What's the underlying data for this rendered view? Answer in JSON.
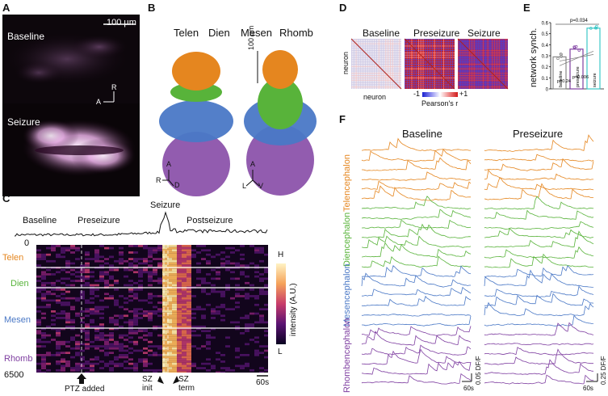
{
  "panels": {
    "A": {
      "letter": "A",
      "scalebar": "100 µm",
      "top_label": "Baseline",
      "bottom_label": "Seizure",
      "axis_r": "R",
      "axis_a": "A"
    },
    "B": {
      "letter": "B",
      "regions": [
        {
          "name": "Telen",
          "color": "#e5861f"
        },
        {
          "name": "Dien",
          "color": "#58b33a"
        },
        {
          "name": "Mesen",
          "color": "#4a78c6"
        },
        {
          "name": "Rhomb",
          "color": "#7f3fa1"
        }
      ],
      "scalebar": "100 µm",
      "axes_left": {
        "a": "A",
        "r": "R",
        "d": "D"
      },
      "axes_right": {
        "a": "A",
        "l": "L",
        "v": "V"
      }
    },
    "C": {
      "letter": "C",
      "phases": [
        "Baseline",
        "Preseizure",
        "Seizure",
        "Postseizure"
      ],
      "regions": [
        {
          "name": "Telen",
          "color": "#e5861f"
        },
        {
          "name": "Dien",
          "color": "#58b33a"
        },
        {
          "name": "Mesen",
          "color": "#4a78c6"
        },
        {
          "name": "Rhomb",
          "color": "#7f3fa1"
        }
      ],
      "y_top": "0",
      "y_bottom": "6500",
      "markers": [
        "PTZ added",
        "SZ\ninit",
        "SZ\nterm"
      ],
      "colorbar_label": "intensity (A.U.)",
      "colorbar_high": "H",
      "colorbar_low": "L",
      "scalebar": "60s"
    },
    "D": {
      "letter": "D",
      "titles": [
        "Baseline",
        "Preseizure",
        "Seizure"
      ],
      "x_label": "neuron",
      "y_label": "neuron",
      "cbar_min": "-1",
      "cbar_max": "+1",
      "cbar_label": "Pearson's r"
    },
    "E": {
      "letter": "E",
      "ylabel": "network synch.",
      "yticks": [
        "0",
        "0.1",
        "0.2",
        "0.3",
        "0.4",
        "0.5",
        "0.6"
      ],
      "pvalues": [
        "p=0.034",
        "p=0.24",
        "p=0.006"
      ],
      "categories": [
        "baseline",
        "preseizure",
        "seizure"
      ]
    },
    "F": {
      "letter": "F",
      "titles": [
        "Baseline",
        "Preseizure"
      ],
      "regions": [
        {
          "name": "Telencephalon",
          "color": "#e5861f"
        },
        {
          "name": "Diencephalon",
          "color": "#58b33a"
        },
        {
          "name": "Mesencephalon",
          "color": "#4a78c6"
        },
        {
          "name": "Rhombencephalon",
          "color": "#7f3fa1"
        }
      ],
      "scale_left_y": "0.05 DF/F",
      "scale_left_x": "60s",
      "scale_right_y": "0.25 DF/F",
      "scale_right_x": "60s"
    }
  },
  "chart_data": [
    {
      "type": "bar",
      "title": "",
      "ylabel": "network synch.",
      "categories": [
        "baseline",
        "preseizure",
        "seizure"
      ],
      "values": [
        0.29,
        0.36,
        0.55
      ],
      "ylim": [
        0,
        0.6
      ],
      "colors": [
        "#888888",
        "#7f3fa1",
        "#3cc7c7"
      ],
      "annotations": [
        "p=0.034",
        "p=0.24",
        "p=0.006"
      ]
    }
  ]
}
